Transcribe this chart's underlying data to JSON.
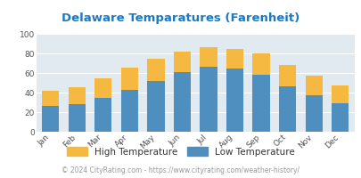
{
  "title": "Delaware Temparatures (Farenheit)",
  "months": [
    "Jan",
    "Feb",
    "Mar",
    "Apr",
    "May",
    "Jun",
    "Jul",
    "Aug",
    "Sep",
    "Oct",
    "Nov",
    "Dec"
  ],
  "low_temps": [
    26,
    28,
    35,
    43,
    52,
    61,
    66,
    65,
    58,
    46,
    37,
    29
  ],
  "high_temps": [
    42,
    45,
    55,
    65,
    75,
    82,
    86,
    85,
    80,
    68,
    57,
    47
  ],
  "bar_color_low": "#4f8fc0",
  "bar_color_high": "#f5b942",
  "background_color": "#e0eaf0",
  "title_color": "#1a7ac4",
  "ylabel_ticks": [
    0,
    20,
    40,
    60,
    80,
    100
  ],
  "ylim": [
    0,
    100
  ],
  "footer_text": "© 2024 CityRating.com - https://www.cityrating.com/weather-history/",
  "legend_high": "High Temperature",
  "legend_low": "Low Temperature",
  "title_fontsize": 9.5,
  "tick_fontsize": 6.5,
  "legend_fontsize": 7.5,
  "footer_fontsize": 5.5
}
